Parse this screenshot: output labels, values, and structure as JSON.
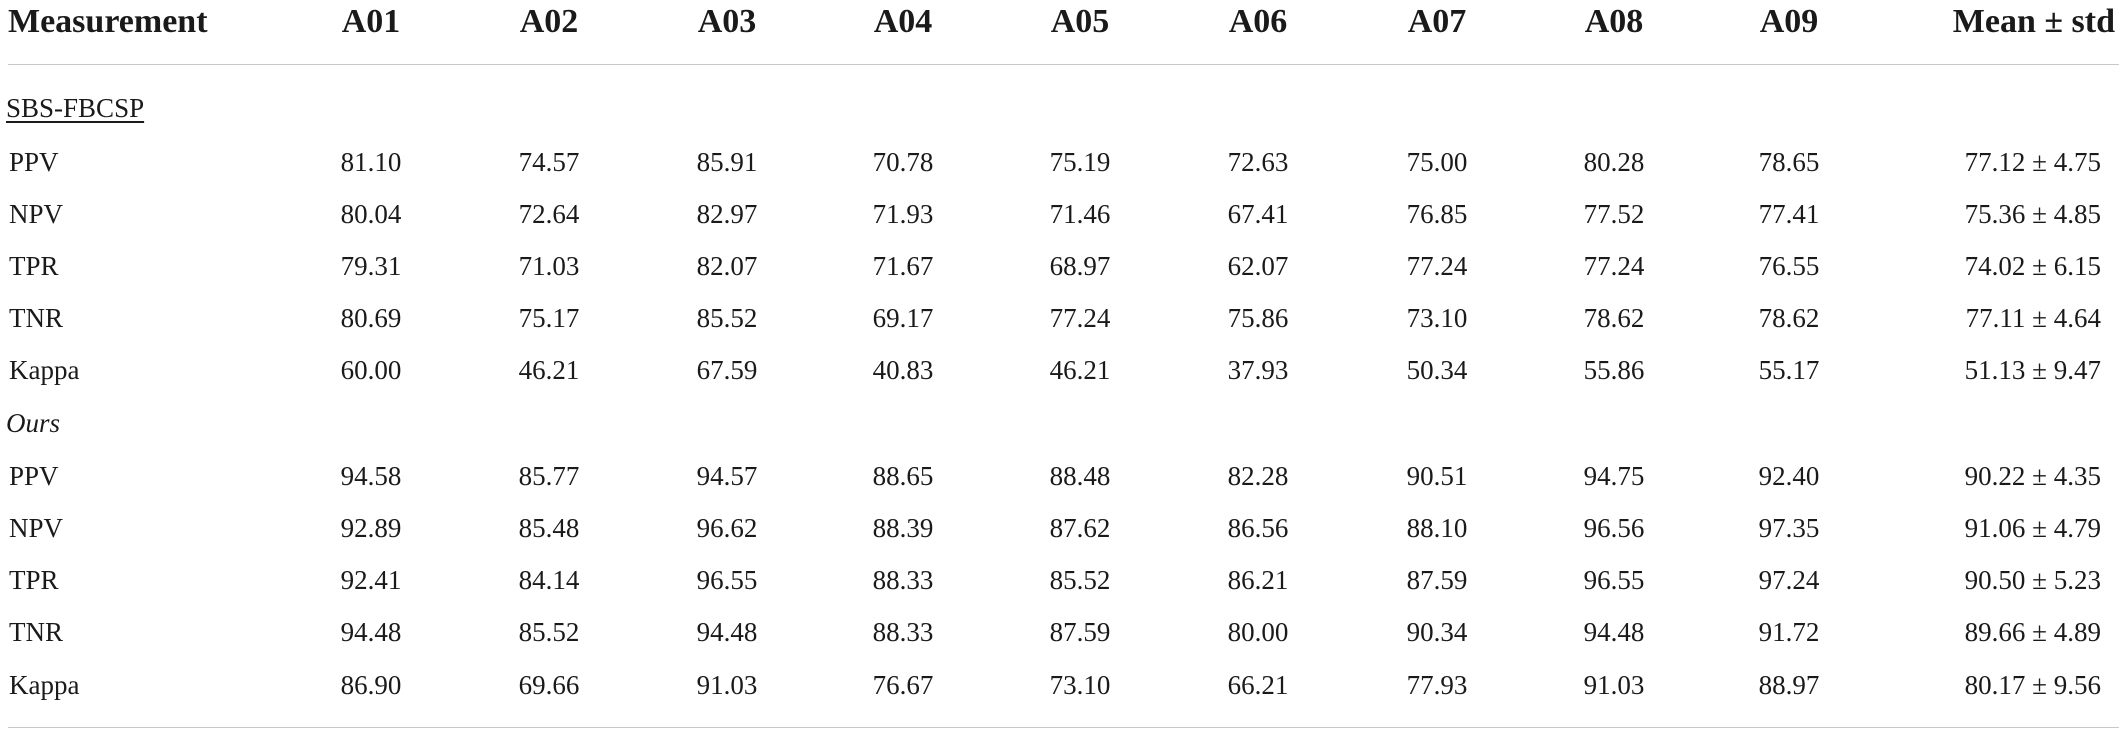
{
  "columns": [
    "Measurement",
    "A01",
    "A02",
    "A03",
    "A04",
    "A05",
    "A06",
    "A07",
    "A08",
    "A09",
    "Mean ± std"
  ],
  "sections": [
    {
      "label": "SBS-FBCSP",
      "rows": [
        {
          "measure": "PPV",
          "values": [
            "81.10",
            "74.57",
            "85.91",
            "70.78",
            "75.19",
            "72.63",
            "75.00",
            "80.28",
            "78.65"
          ],
          "mean": "77.12 ± 4.75"
        },
        {
          "measure": "NPV",
          "values": [
            "80.04",
            "72.64",
            "82.97",
            "71.93",
            "71.46",
            "67.41",
            "76.85",
            "77.52",
            "77.41"
          ],
          "mean": "75.36 ± 4.85"
        },
        {
          "measure": "TPR",
          "values": [
            "79.31",
            "71.03",
            "82.07",
            "71.67",
            "68.97",
            "62.07",
            "77.24",
            "77.24",
            "76.55"
          ],
          "mean": "74.02 ± 6.15"
        },
        {
          "measure": "TNR",
          "values": [
            "80.69",
            "75.17",
            "85.52",
            "69.17",
            "77.24",
            "75.86",
            "73.10",
            "78.62",
            "78.62"
          ],
          "mean": "77.11 ± 4.64"
        },
        {
          "measure": "Kappa",
          "values": [
            "60.00",
            "46.21",
            "67.59",
            "40.83",
            "46.21",
            "37.93",
            "50.34",
            "55.86",
            "55.17"
          ],
          "mean": "51.13 ± 9.47"
        }
      ]
    },
    {
      "label": "Ours",
      "rows": [
        {
          "measure": "PPV",
          "values": [
            "94.58",
            "85.77",
            "94.57",
            "88.65",
            "88.48",
            "82.28",
            "90.51",
            "94.75",
            "92.40"
          ],
          "mean": "90.22 ± 4.35"
        },
        {
          "measure": "NPV",
          "values": [
            "92.89",
            "85.48",
            "96.62",
            "88.39",
            "87.62",
            "86.56",
            "88.10",
            "96.56",
            "97.35"
          ],
          "mean": "91.06 ± 4.79"
        },
        {
          "measure": "TPR",
          "values": [
            "92.41",
            "84.14",
            "96.55",
            "88.33",
            "85.52",
            "86.21",
            "87.59",
            "96.55",
            "97.24"
          ],
          "mean": "90.50 ± 5.23"
        },
        {
          "measure": "TNR",
          "values": [
            "94.48",
            "85.52",
            "94.48",
            "88.33",
            "87.59",
            "80.00",
            "90.34",
            "94.48",
            "91.72"
          ],
          "mean": "89.66 ± 4.89"
        },
        {
          "measure": "Kappa",
          "values": [
            "86.90",
            "69.66",
            "91.03",
            "76.67",
            "73.10",
            "66.21",
            "77.93",
            "91.03",
            "88.97"
          ],
          "mean": "80.17 ± 9.56"
        }
      ]
    }
  ]
}
